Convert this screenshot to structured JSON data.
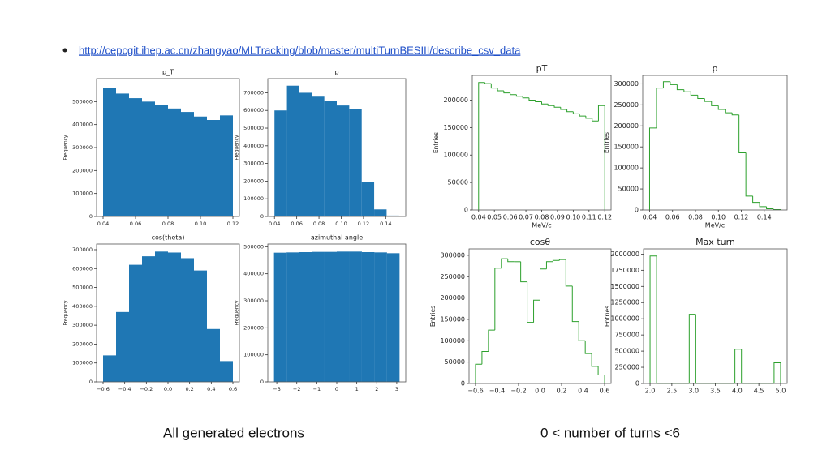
{
  "link": "http://cepcgit.ihep.ac.cn/zhangyao/MLTracking/blob/master/multiTurnBESIII/describe_csv_data",
  "captions": [
    "All generated electrons",
    "0 < number of turns <6"
  ],
  "chart_data": [
    {
      "type": "histogram",
      "histtype": "bar",
      "color": "#1f77b4",
      "title": "p_T",
      "y_label": "Frequency",
      "bins": [
        0.04,
        0.048,
        0.056,
        0.064,
        0.072,
        0.08,
        0.088,
        0.096,
        0.104,
        0.112,
        0.12
      ],
      "values": [
        560000,
        535000,
        515000,
        500000,
        485000,
        470000,
        455000,
        435000,
        420000,
        440000
      ],
      "xlim": [
        0.036,
        0.124
      ],
      "ylim": [
        0,
        600000
      ],
      "xticks": [
        0.04,
        0.06,
        0.08,
        {
          "value": 0.1,
          "label": "0.10"
        },
        0.12
      ],
      "yticks": [
        0,
        100000,
        200000,
        300000,
        400000,
        500000
      ]
    },
    {
      "type": "histogram",
      "histtype": "bar",
      "color": "#1f77b4",
      "title": "p",
      "y_label": "Frequency",
      "bins": [
        0.04,
        0.0512,
        0.0624,
        0.0736,
        0.0848,
        0.096,
        0.1072,
        0.1184,
        0.1296,
        0.1408,
        0.152
      ],
      "values": [
        600000,
        740000,
        700000,
        678000,
        655000,
        628000,
        608000,
        195000,
        40000,
        5000
      ],
      "xlim": [
        0.034,
        0.158
      ],
      "ylim": [
        0,
        780000
      ],
      "xticks": [
        0.04,
        0.06,
        0.08,
        {
          "value": 0.1,
          "label": "0.10"
        },
        0.12,
        0.14
      ],
      "yticks": [
        0,
        100000,
        200000,
        300000,
        400000,
        500000,
        600000,
        700000
      ]
    },
    {
      "type": "histogram",
      "histtype": "bar",
      "color": "#1f77b4",
      "title": "cos(theta)",
      "y_label": "Frequency",
      "bins": [
        -0.6,
        -0.48,
        -0.36,
        -0.24,
        -0.12,
        0,
        0.12,
        0.24,
        0.36,
        0.48,
        0.6
      ],
      "values": [
        140000,
        370000,
        620000,
        665000,
        690000,
        685000,
        655000,
        590000,
        280000,
        110000
      ],
      "xlim": [
        -0.66,
        0.66
      ],
      "ylim": [
        0,
        730000
      ],
      "xticks": [
        {
          "value": -0.6,
          "label": "−0.6"
        },
        {
          "value": -0.4,
          "label": "−0.4"
        },
        {
          "value": -0.2,
          "label": "−0.2"
        },
        {
          "value": 0,
          "label": "0.0"
        },
        0.2,
        0.4,
        0.6
      ],
      "yticks": [
        0,
        100000,
        200000,
        300000,
        400000,
        500000,
        600000,
        700000
      ]
    },
    {
      "type": "histogram",
      "histtype": "bar",
      "color": "#1f77b4",
      "title": "azimuthal angle",
      "y_label": "Frequency",
      "bins": [
        -3.14,
        -2.512,
        -1.884,
        -1.256,
        -0.628,
        0,
        0.628,
        1.256,
        1.884,
        2.512,
        3.14
      ],
      "values": [
        478000,
        479000,
        480000,
        481000,
        481000,
        482000,
        482000,
        480000,
        479000,
        476000
      ],
      "xlim": [
        -3.45,
        3.45
      ],
      "ylim": [
        0,
        510000
      ],
      "xticks": [
        {
          "value": -3,
          "label": "−3"
        },
        {
          "value": -2,
          "label": "−2"
        },
        {
          "value": -1,
          "label": "−1"
        },
        0,
        1,
        2,
        3
      ],
      "yticks": [
        0,
        100000,
        200000,
        300000,
        400000,
        500000
      ]
    },
    {
      "type": "histogram",
      "histtype": "step",
      "color": "#2ca02c",
      "title": "pT",
      "y_label": "Entries",
      "x_label": "MeV/c",
      "bins": [
        0.04,
        0.044,
        0.048,
        0.052,
        0.056,
        0.06,
        0.064,
        0.068,
        0.072,
        0.076,
        0.08,
        0.084,
        0.088,
        0.092,
        0.096,
        0.1,
        0.104,
        0.108,
        0.112,
        0.116,
        0.12
      ],
      "values": [
        232000,
        230000,
        222000,
        217000,
        213000,
        210000,
        207000,
        204000,
        200000,
        197000,
        193000,
        190000,
        187000,
        183000,
        179000,
        175000,
        171000,
        167000,
        162000,
        190000
      ],
      "xlim": [
        0.036,
        0.124
      ],
      "ylim": [
        0,
        245000
      ],
      "xticks": [
        0.04,
        0.05,
        0.06,
        0.07,
        0.08,
        0.09,
        {
          "value": 0.1,
          "label": "0.10"
        },
        0.11,
        0.12
      ],
      "yticks": [
        0,
        50000,
        100000,
        150000,
        200000
      ]
    },
    {
      "type": "histogram",
      "histtype": "step",
      "color": "#2ca02c",
      "title": "p",
      "y_label": "Entries",
      "x_label": "MeV/c",
      "bins": [
        0.04,
        0.046,
        0.052,
        0.058,
        0.064,
        0.07,
        0.076,
        0.082,
        0.088,
        0.094,
        0.1,
        0.106,
        0.112,
        0.118,
        0.124,
        0.13,
        0.136,
        0.142,
        0.148,
        0.154
      ],
      "values": [
        195000,
        290000,
        305000,
        298000,
        286000,
        281000,
        273000,
        265000,
        258000,
        248000,
        239000,
        231000,
        226000,
        136000,
        33000,
        18000,
        8000,
        3000,
        1000
      ],
      "xlim": [
        0.034,
        0.16
      ],
      "ylim": [
        0,
        320000
      ],
      "xticks": [
        0.04,
        0.06,
        0.08,
        {
          "value": 0.1,
          "label": "0.10"
        },
        0.12,
        0.14
      ],
      "yticks": [
        0,
        50000,
        100000,
        150000,
        200000,
        250000,
        300000
      ]
    },
    {
      "type": "histogram",
      "histtype": "step",
      "color": "#2ca02c",
      "title": "cosθ",
      "y_label": "Entries",
      "bins": [
        -0.6,
        -0.54,
        -0.48,
        -0.42,
        -0.36,
        -0.3,
        -0.24,
        -0.18,
        -0.12,
        -0.06,
        0,
        0.06,
        0.12,
        0.18,
        0.24,
        0.3,
        0.36,
        0.42,
        0.48,
        0.54,
        0.6
      ],
      "values": [
        45000,
        75000,
        125000,
        270000,
        292000,
        285000,
        285000,
        238000,
        143000,
        195000,
        268000,
        285000,
        288000,
        290000,
        228000,
        145000,
        100000,
        70000,
        40000,
        20000
      ],
      "xlim": [
        -0.66,
        0.66
      ],
      "ylim": [
        0,
        315000
      ],
      "xticks": [
        {
          "value": -0.6,
          "label": "−0.6"
        },
        {
          "value": -0.4,
          "label": "−0.4"
        },
        {
          "value": -0.2,
          "label": "−0.2"
        },
        {
          "value": 0,
          "label": "0.0"
        },
        0.2,
        0.4,
        0.6
      ],
      "yticks": [
        0,
        50000,
        100000,
        150000,
        200000,
        250000,
        300000
      ]
    },
    {
      "type": "histogram",
      "histtype": "step",
      "color": "#2ca02c",
      "title": "Max turn",
      "y_label": "Entries",
      "bins": [
        2,
        2.15,
        2.3,
        2.45,
        2.6,
        2.75,
        2.9,
        3.05,
        3.2,
        3.35,
        3.5,
        3.65,
        3.8,
        3.95,
        4.1,
        4.25,
        4.4,
        4.55,
        4.7,
        4.85,
        5
      ],
      "values": [
        1970000,
        0,
        0,
        0,
        0,
        0,
        1070000,
        0,
        0,
        0,
        0,
        0,
        0,
        530000,
        0,
        0,
        0,
        0,
        0,
        320000
      ],
      "xlim": [
        1.85,
        5.15
      ],
      "ylim": [
        0,
        2080000
      ],
      "xticks": [
        {
          "value": 2,
          "label": "2.0"
        },
        2.5,
        {
          "value": 3,
          "label": "3.0"
        },
        3.5,
        {
          "value": 4,
          "label": "4.0"
        },
        4.5,
        {
          "value": 5,
          "label": "5.0"
        }
      ],
      "yticks": [
        0,
        250000,
        500000,
        750000,
        1000000,
        1250000,
        1500000,
        1750000,
        2000000
      ]
    }
  ]
}
